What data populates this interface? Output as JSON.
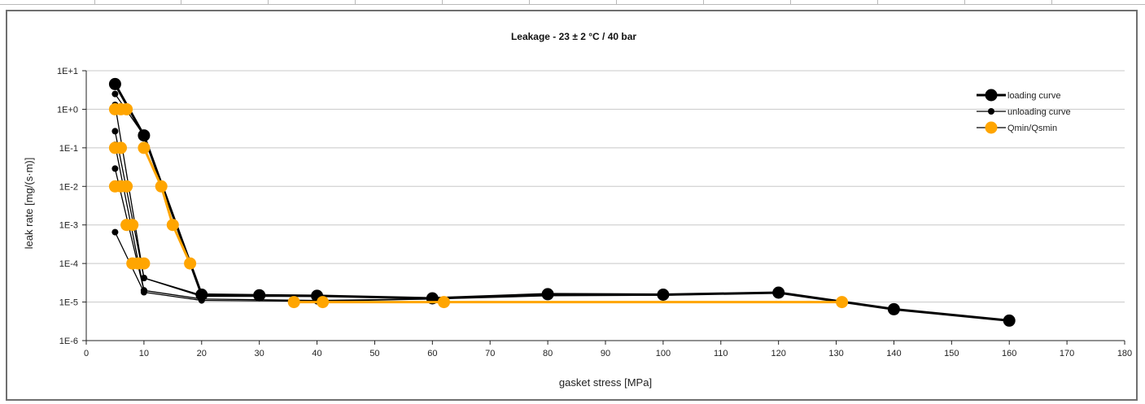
{
  "chart_data": {
    "type": "scatter",
    "title": "Leakage - 23 ± 2 °C / 40 bar",
    "xlabel": "gasket stress [MPa]",
    "ylabel": "leak rate [mg/(s·m)]",
    "xlim": [
      0,
      180
    ],
    "x_ticks": [
      0,
      10,
      20,
      30,
      40,
      50,
      60,
      70,
      80,
      90,
      100,
      110,
      120,
      130,
      140,
      150,
      160,
      170,
      180
    ],
    "y_scale": "log",
    "ylim": [
      1e-06,
      10
    ],
    "y_ticks": [
      {
        "value": 10,
        "label": "1E+1"
      },
      {
        "value": 1,
        "label": "1E+0"
      },
      {
        "value": 0.1,
        "label": "1E-1"
      },
      {
        "value": 0.01,
        "label": "1E-2"
      },
      {
        "value": 0.001,
        "label": "1E-3"
      },
      {
        "value": 0.0001,
        "label": "1E-4"
      },
      {
        "value": 1e-05,
        "label": "1E-5"
      },
      {
        "value": 1e-06,
        "label": "1E-6"
      }
    ],
    "grid": "horizontal",
    "legend_position": "top-right",
    "colors": {
      "loading": "#000000",
      "unloading": "#000000",
      "qmin": "#ffa500",
      "grid": "#c8c8c8"
    },
    "series": [
      {
        "name": "loading curve",
        "style": "loading",
        "segments": [
          [
            [
              5,
              4.5
            ],
            [
              10,
              0.21
            ],
            [
              20,
              1.55e-05
            ],
            [
              30,
              1.5e-05
            ],
            [
              40,
              1.45e-05
            ],
            [
              60,
              1.25e-05
            ],
            [
              80,
              1.6e-05
            ],
            [
              100,
              1.55e-05
            ],
            [
              120,
              1.75e-05
            ],
            [
              140,
              6.5e-06
            ],
            [
              160,
              3.3e-06
            ]
          ]
        ]
      },
      {
        "name": "unloading curve",
        "style": "unloading",
        "segments": [
          [
            [
              160,
              3.3e-06
            ],
            [
              140,
              6.5e-06
            ],
            [
              120,
              1.75e-05
            ],
            [
              100,
              1.5e-05
            ],
            [
              80,
              1.45e-05
            ],
            [
              60,
              1.2e-05
            ],
            [
              40,
              1.05e-05
            ],
            [
              20,
              1.1e-05
            ],
            [
              10,
              1.8e-05
            ],
            [
              5,
              0.00065
            ]
          ],
          [
            [
              60,
              1.2e-05
            ],
            [
              40,
              1.1e-05
            ],
            [
              20,
              1.2e-05
            ],
            [
              10,
              2e-05
            ],
            [
              5,
              0.029
            ]
          ],
          [
            [
              40,
              1.4e-05
            ],
            [
              20,
              1.4e-05
            ],
            [
              10,
              4.2e-05
            ],
            [
              5,
              0.27
            ]
          ],
          [
            [
              20,
              1.5e-05
            ],
            [
              10,
              4.2e-05
            ],
            [
              5,
              1.3
            ]
          ],
          [
            [
              10,
              0.21
            ],
            [
              5,
              2.5
            ]
          ],
          [
            [
              5,
              0.12
            ],
            [
              10,
              2e-05
            ]
          ]
        ]
      },
      {
        "name": "Qmin/Qsmin",
        "style": "qmin",
        "segments": [
          [
            [
              5,
              1
            ],
            [
              6,
              1
            ],
            [
              7,
              1
            ]
          ],
          [
            [
              5,
              0.1
            ],
            [
              6,
              0.1
            ]
          ],
          [
            [
              5,
              0.01
            ],
            [
              6,
              0.01
            ],
            [
              7,
              0.01
            ]
          ],
          [
            [
              7,
              0.001
            ],
            [
              8,
              0.001
            ]
          ],
          [
            [
              8,
              0.0001
            ],
            [
              9,
              0.0001
            ],
            [
              10,
              0.0001
            ]
          ],
          [
            [
              10,
              0.1
            ],
            [
              13,
              0.01
            ],
            [
              15,
              0.001
            ],
            [
              18,
              0.0001
            ]
          ],
          [
            [
              36,
              1e-05
            ],
            [
              41,
              1e-05
            ],
            [
              62,
              1e-05
            ],
            [
              131,
              1e-05
            ]
          ]
        ]
      }
    ]
  }
}
